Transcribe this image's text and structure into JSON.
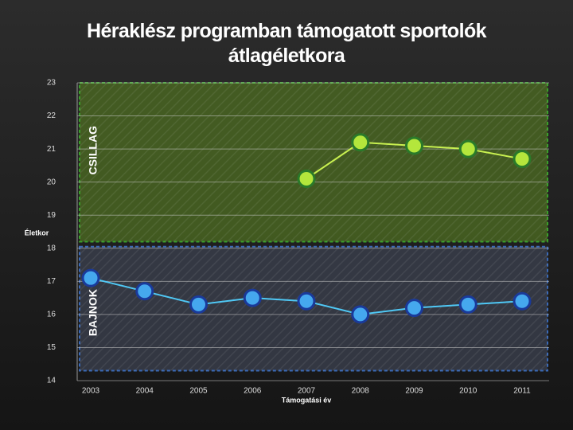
{
  "chart_data": {
    "type": "line",
    "title": "Héraklész programban támogatott sportolók átlagéletkora",
    "y_label": "Életkor",
    "x_label": "Támogatási év",
    "categories": [
      "2003",
      "2004",
      "2005",
      "2006",
      "2007",
      "2008",
      "2009",
      "2010",
      "2011"
    ],
    "series": [
      {
        "name": "CSILLAG",
        "color": "#c8f050",
        "marker_fill": "#b4e63c",
        "marker_stroke": "#2a7a2a",
        "band": [
          18.2,
          23
        ],
        "band_color": "#4d6e22",
        "band_stroke": "#3aa02a",
        "values": [
          null,
          null,
          null,
          null,
          20.1,
          21.2,
          21.1,
          21.0,
          20.7
        ]
      },
      {
        "name": "BAJNOK",
        "color": "#4fc8f5",
        "marker_fill": "#45a8ee",
        "marker_stroke": "#1a3a9a",
        "band": [
          14.3,
          18.05
        ],
        "band_color": "#3c4250",
        "band_stroke": "#3a6ab8",
        "values": [
          17.1,
          16.7,
          16.3,
          16.5,
          16.4,
          16.0,
          16.2,
          16.3,
          16.4
        ]
      }
    ],
    "ylim": [
      14,
      23
    ],
    "yticks": [
      14,
      15,
      16,
      17,
      18,
      19,
      20,
      21,
      22,
      23
    ],
    "grid": true
  }
}
